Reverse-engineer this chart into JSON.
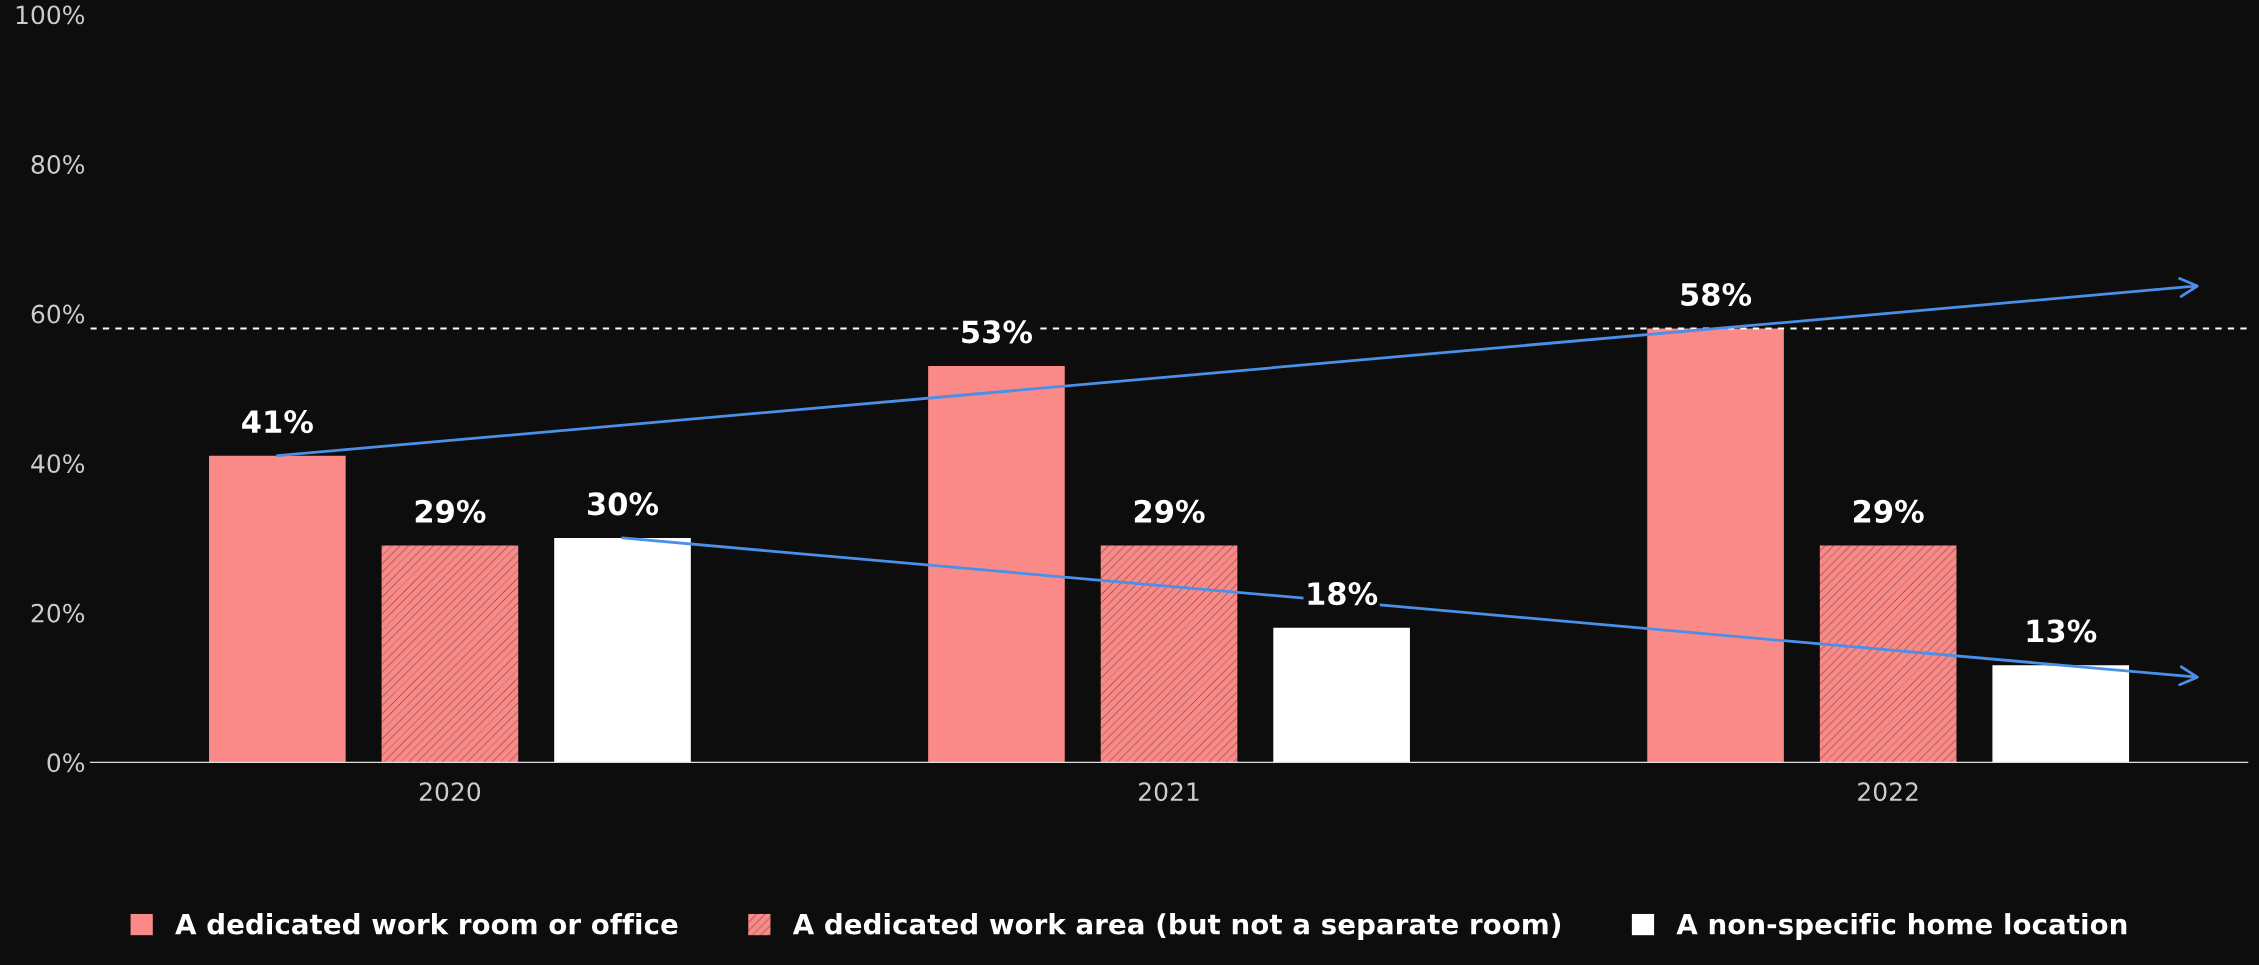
{
  "chart_data": {
    "type": "bar",
    "categories": [
      "2020",
      "2021",
      "2022"
    ],
    "series": [
      {
        "name": "A dedicated work room or office",
        "color": "#fa8a87",
        "values": [
          41,
          53,
          58
        ]
      },
      {
        "name": "A dedicated work area (but not a separate room)",
        "color": "#fa8a87",
        "values": [
          29,
          29,
          29
        ]
      },
      {
        "name": "A non-specific home location",
        "color": "#ffffff",
        "values": [
          30,
          18,
          13
        ]
      }
    ],
    "ylim": [
      0,
      100
    ],
    "yticks": [
      {
        "value": 0,
        "label": "0%"
      },
      {
        "value": 20,
        "label": "20%"
      },
      {
        "value": 40,
        "label": "40%"
      },
      {
        "value": 60,
        "label": "60%"
      },
      {
        "value": 80,
        "label": "80%"
      },
      {
        "value": 100,
        "label": "100%"
      }
    ],
    "value_labels": [
      [
        "41%",
        "53%",
        "58%"
      ],
      [
        "29%",
        "29%",
        "29%"
      ],
      [
        "30%",
        "18%",
        "13%"
      ]
    ],
    "ref_lines": [
      {
        "axis": "y",
        "value": 58,
        "color": "#ffffff",
        "line_style": "dashed"
      }
    ],
    "grid": false,
    "legend": "bottom"
  }
}
